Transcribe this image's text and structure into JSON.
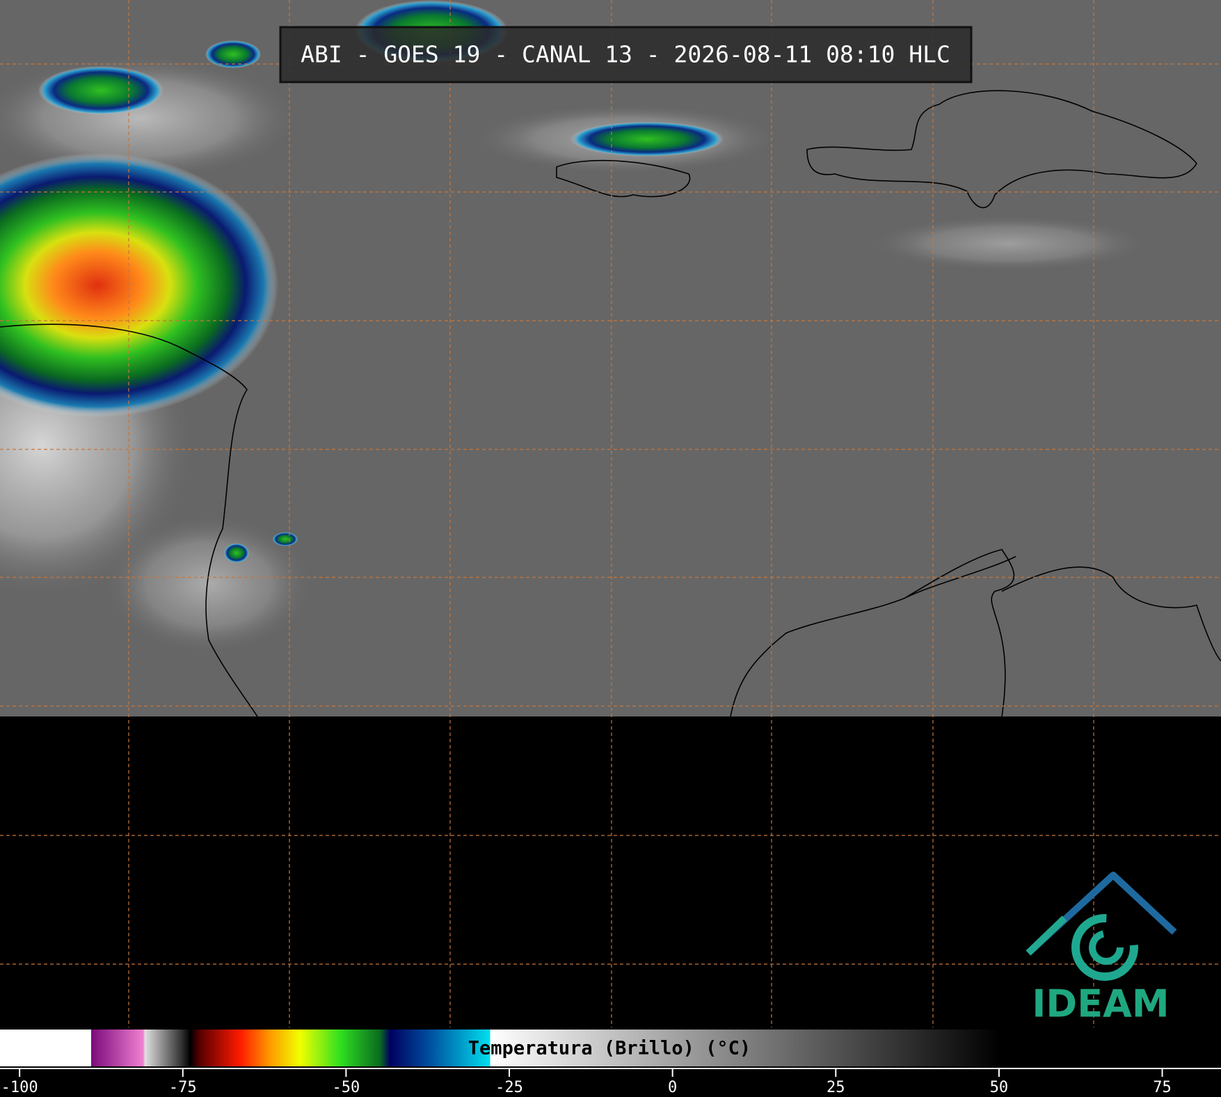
{
  "title": "ABI - GOES 19 - CANAL 13 - 2026-08-11 08:10 HLC",
  "colorbar": {
    "label": "Temperatura (Brillo) (°C)",
    "xlim": [
      -103,
      84
    ],
    "ticks": [
      -100,
      -75,
      -50,
      -25,
      0,
      25,
      50,
      75
    ]
  },
  "logo": "IDEAM"
}
